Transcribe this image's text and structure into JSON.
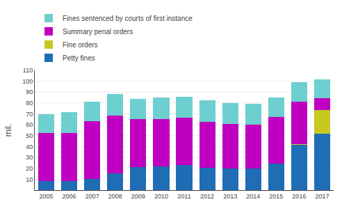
{
  "chart_data": {
    "type": "bar",
    "stacked": true,
    "ylabel": "mil.",
    "categories": [
      "2005",
      "2006",
      "2007",
      "2008",
      "2009",
      "2010",
      "2011",
      "2012",
      "2013",
      "2014",
      "2015",
      "2016",
      "2017"
    ],
    "series": [
      {
        "name": "Petty fines",
        "color": "#1f6db5",
        "values": [
          8.5,
          8.5,
          10.5,
          15.5,
          21.0,
          22.0,
          23.0,
          20.5,
          20.0,
          20.0,
          24.0,
          42.0,
          51.5
        ]
      },
      {
        "name": "Fine orders",
        "color": "#c8c820",
        "values": [
          0.0,
          0.0,
          0.0,
          0.0,
          0.0,
          0.0,
          0.0,
          0.0,
          0.0,
          0.0,
          0.0,
          0.5,
          22.0
        ]
      },
      {
        "name": "Summary penal orders",
        "color": "#c000c0",
        "values": [
          44.0,
          44.0,
          52.5,
          53.0,
          44.0,
          43.0,
          43.5,
          42.0,
          41.0,
          40.0,
          43.0,
          39.0,
          11.0
        ]
      },
      {
        "name": "Fines sentenced by courts of first instance",
        "color": "#6dcfcf",
        "values": [
          17.5,
          19.0,
          18.0,
          20.0,
          19.0,
          20.0,
          19.5,
          20.0,
          19.0,
          19.5,
          18.0,
          17.5,
          17.5
        ]
      }
    ],
    "ylim": [
      0,
      110
    ],
    "yticks": [
      10,
      20,
      30,
      40,
      50,
      60,
      70,
      80,
      90,
      100,
      110
    ],
    "grid": true,
    "legend": "top"
  }
}
